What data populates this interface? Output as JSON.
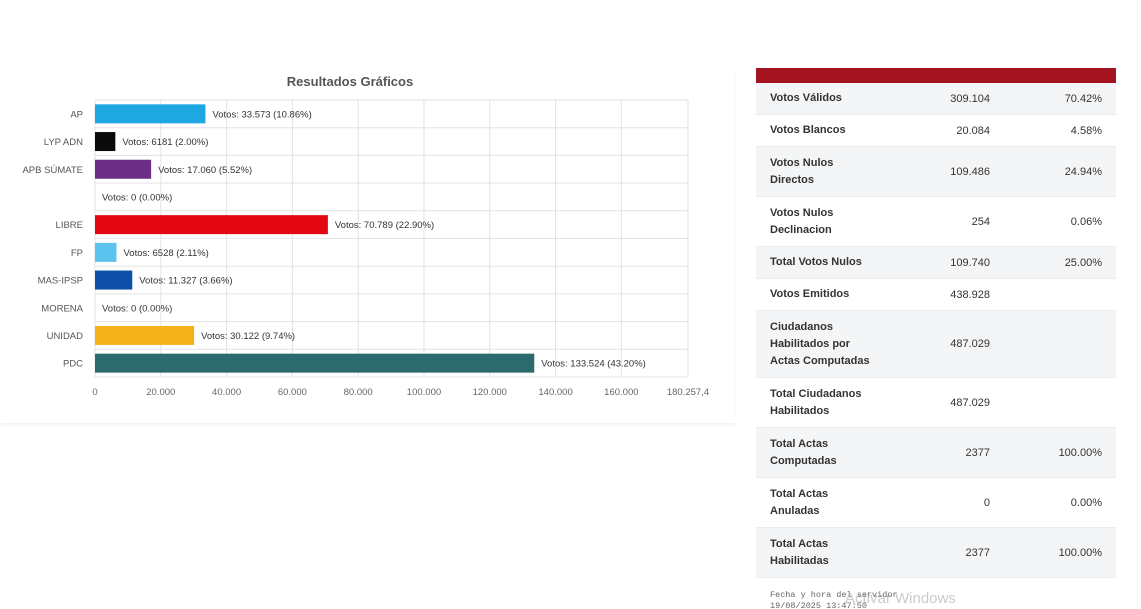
{
  "chart_data": {
    "type": "bar",
    "orientation": "horizontal",
    "title": "Resultados Gráficos",
    "categories": [
      "AP",
      "LYP ADN",
      "APB SÚMATE",
      "",
      "LIBRE",
      "FP",
      "MAS-IPSP",
      "MORENA",
      "UNIDAD",
      "PDC"
    ],
    "values": [
      33573,
      6181,
      17060,
      0,
      70789,
      6528,
      11327,
      0,
      30122,
      133524
    ],
    "data_labels": [
      "Votos: 33.573 (10.86%)",
      "Votos: 6181 (2.00%)",
      "Votos: 17.060 (5.52%)",
      "Votos: 0 (0.00%)",
      "Votos: 70.789 (22.90%)",
      "Votos: 6528 (2.11%)",
      "Votos: 11.327 (3.66%)",
      "Votos: 0 (0.00%)",
      "Votos: 30.122 (9.74%)",
      "Votos: 133.524 (43.20%)"
    ],
    "colors": [
      "#1ea7e1",
      "#0a0a0a",
      "#6b2d86",
      "#ffffff",
      "#e30613",
      "#5bc3ee",
      "#0d4ea6",
      "#ffffff",
      "#f5b21b",
      "#2b6b6e"
    ],
    "xlim": [
      0,
      180257.4
    ],
    "xticks": [
      0,
      20000,
      40000,
      60000,
      80000,
      100000,
      120000,
      140000,
      160000,
      180257.4
    ],
    "xtick_labels": [
      "0",
      "20.000",
      "40.000",
      "60.000",
      "80.000",
      "100.000",
      "120.000",
      "140.000",
      "160.000",
      "180.257,4"
    ],
    "grid": true
  },
  "table": {
    "rows": [
      {
        "label": "Votos Válidos",
        "value": "309.104",
        "pct": "70.42%"
      },
      {
        "label": "Votos Blancos",
        "value": "20.084",
        "pct": "4.58%"
      },
      {
        "label": "Votos Nulos Directos",
        "value": "109.486",
        "pct": "24.94%"
      },
      {
        "label": "Votos Nulos Declinacion",
        "value": "254",
        "pct": "0.06%"
      },
      {
        "label": "Total Votos Nulos",
        "value": "109.740",
        "pct": "25.00%"
      },
      {
        "label": "Votos Emitidos",
        "value": "438.928",
        "pct": ""
      },
      {
        "label": "Ciudadanos Habilitados por Actas Computadas",
        "value": "487.029",
        "pct": ""
      },
      {
        "label": "Total Ciudadanos Habilitados",
        "value": "487.029",
        "pct": ""
      },
      {
        "label": "Total Actas Computadas",
        "value": "2377",
        "pct": "100.00%"
      },
      {
        "label": "Total Actas Anuladas",
        "value": "0",
        "pct": "0.00%"
      },
      {
        "label": "Total Actas Habilitadas",
        "value": "2377",
        "pct": "100.00%"
      }
    ]
  },
  "footer": {
    "label": "Fecha y hora del servidor",
    "timestamp": "19/08/2025 13:47:50"
  },
  "watermark": "Activar Windows"
}
